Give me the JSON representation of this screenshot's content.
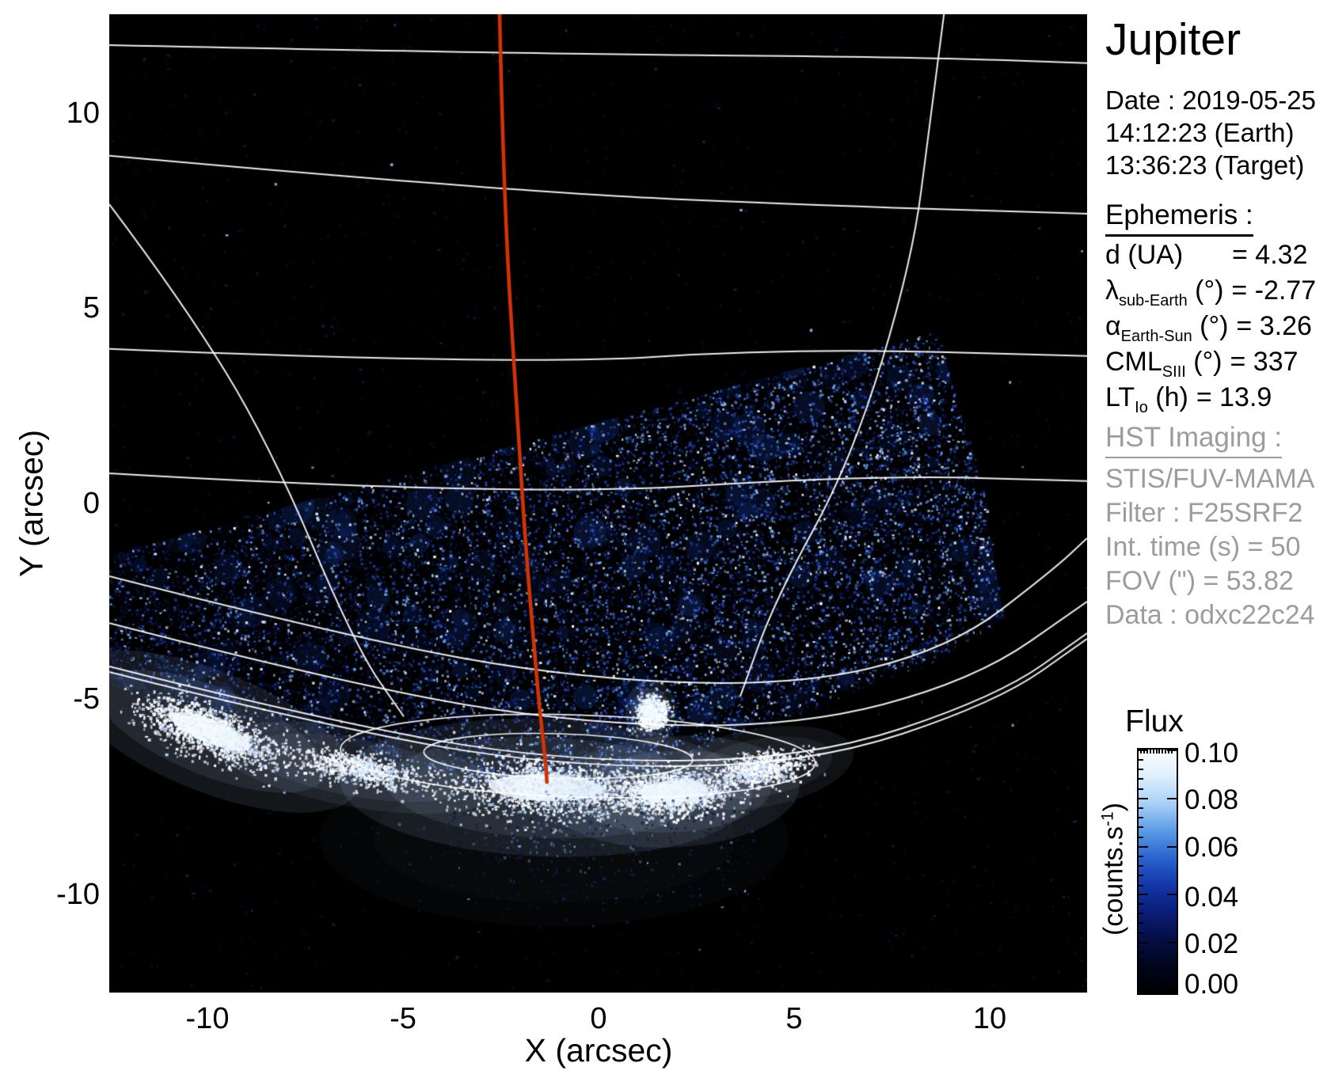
{
  "header": {
    "title": "Jupiter",
    "date_lines": [
      "Date : 2019-05-25",
      "14:12:23 (Earth)",
      "13:36:23 (Target)"
    ]
  },
  "ephemeris": {
    "heading": "Ephemeris :",
    "rows": [
      {
        "sym": "d",
        "sub": "",
        "unit": " (UA)",
        "value": "= 4.32"
      },
      {
        "sym": "λ",
        "sub": "sub-Earth",
        "unit": " (°)",
        "value": "= -2.77"
      },
      {
        "sym": "α",
        "sub": "Earth-Sun",
        "unit": " (°)",
        "value": "= 3.26"
      },
      {
        "sym": "CML",
        "sub": "SIII",
        "unit": " (°)",
        "value": "= 337"
      },
      {
        "sym": "LT",
        "sub": "Io",
        "unit": " (h)",
        "value": "= 13.9"
      }
    ]
  },
  "hst": {
    "heading": "HST Imaging :",
    "lines": [
      "STIS/FUV-MAMA",
      "Filter : F25SRF2",
      "Int. time (s) = 50",
      "FOV (\") = 53.82",
      "Data : odxc22c24"
    ]
  },
  "axes": {
    "x_label": "X (arcsec)",
    "y_label": "Y (arcsec)",
    "x_ticks": [
      "-10",
      "-5",
      "0",
      "5",
      "10"
    ],
    "y_ticks": [
      "10",
      "5",
      "0",
      "-5",
      "-10"
    ]
  },
  "colorbar": {
    "title": "Flux",
    "unit_pre": "(counts.s",
    "unit_sup": "-1",
    "unit_post": ")",
    "tick_labels": [
      "0.10",
      "0.08",
      "0.06",
      "0.04",
      "0.02",
      "0.00"
    ],
    "gradient": [
      "#ffffff",
      "#dceefb",
      "#a8d0f5",
      "#5b9be6",
      "#2a63cf",
      "#1436a8",
      "#0a1d78",
      "#040e44",
      "#01051d",
      "#000000"
    ]
  },
  "chart_data": {
    "type": "heatmap",
    "title": "Jupiter",
    "xlabel": "X (arcsec)",
    "ylabel": "Y (arcsec)",
    "xlim": [
      -12.5,
      12.5
    ],
    "ylim": [
      -12.5,
      12.5
    ],
    "x_ticks": [
      -10,
      -5,
      0,
      5,
      10
    ],
    "y_ticks": [
      10,
      5,
      0,
      -5,
      -10
    ],
    "background_color": "#000000",
    "grid_color": "#ffffff",
    "meridian_color": "#d23304",
    "colorbar": {
      "label": "Flux",
      "unit": "counts.s-1",
      "min": 0.0,
      "max": 0.1,
      "ticks": [
        0.1,
        0.08,
        0.06,
        0.04,
        0.02,
        0.0
      ]
    },
    "exposure_fov_polygon": [
      [
        -12.51,
        -1.3
      ],
      [
        8.64,
        4.41
      ],
      [
        9.8,
        0.53
      ],
      [
        10.36,
        -2.91
      ],
      [
        8.58,
        -4.03
      ],
      [
        4.94,
        -5.45
      ],
      [
        1.9,
        -6.52
      ],
      [
        -1.13,
        -7.53
      ],
      [
        -4.17,
        -6.92
      ],
      [
        -7.21,
        -6.11
      ],
      [
        -10.24,
        -5.38
      ],
      [
        -11.76,
        -4.94
      ],
      [
        -12.51,
        -4.64
      ]
    ],
    "grid_curves": [
      {
        "name": "latitude-1",
        "double": false,
        "points": [
          [
            -12.51,
            11.72
          ],
          [
            -2.15,
            11.5
          ],
          [
            7.98,
            11.42
          ],
          [
            12.49,
            11.26
          ]
        ]
      },
      {
        "name": "latitude-2",
        "double": false,
        "points": [
          [
            -12.51,
            8.89
          ],
          [
            -2.15,
            7.96
          ],
          [
            5.95,
            7.61
          ],
          [
            12.49,
            7.41
          ]
        ]
      },
      {
        "name": "latitude-3",
        "double": false,
        "points": [
          [
            -12.51,
            3.95
          ],
          [
            -2.15,
            3.52
          ],
          [
            4.94,
            3.97
          ],
          [
            12.49,
            3.77
          ]
        ]
      },
      {
        "name": "latitude-4",
        "double": false,
        "points": [
          [
            -12.51,
            0.77
          ],
          [
            -2.15,
            0.16
          ],
          [
            6.96,
            0.73
          ],
          [
            12.49,
            0.57
          ]
        ]
      },
      {
        "name": "latitude-5",
        "double": false,
        "points": [
          [
            -12.51,
            -1.86
          ],
          [
            -7.21,
            -3.22
          ],
          [
            -1.13,
            -4.43
          ],
          [
            4.94,
            -4.7
          ],
          [
            8.99,
            -3.72
          ],
          [
            11.62,
            -1.7
          ],
          [
            12.49,
            -0.89
          ]
        ]
      },
      {
        "name": "latitude-6",
        "double": false,
        "points": [
          [
            -12.51,
            -3.06
          ],
          [
            -7.21,
            -4.43
          ],
          [
            -1.13,
            -5.59
          ],
          [
            4.94,
            -5.75
          ],
          [
            9.6,
            -4.53
          ],
          [
            12.49,
            -2.51
          ]
        ]
      },
      {
        "name": "limb",
        "double": true,
        "points": [
          [
            -12.51,
            -4.17
          ],
          [
            -7.21,
            -5.51
          ],
          [
            -1.13,
            -6.6
          ],
          [
            5.34,
            -6.56
          ],
          [
            10.2,
            -4.94
          ],
          [
            12.49,
            -3.32
          ]
        ]
      },
      {
        "name": "meridian-west",
        "double": false,
        "points": [
          [
            -12.51,
            7.65
          ],
          [
            -10.65,
            5.18
          ],
          [
            -8.42,
            1.54
          ],
          [
            -6.21,
            -3.68
          ],
          [
            -4.98,
            -5.45
          ]
        ]
      },
      {
        "name": "meridian-east",
        "double": false,
        "points": [
          [
            8.83,
            12.51
          ],
          [
            8.48,
            9.84
          ],
          [
            8.02,
            6.19
          ],
          [
            6.48,
            1.13
          ],
          [
            4.51,
            -2.47
          ],
          [
            3.62,
            -4.94
          ]
        ]
      }
    ],
    "grid_ellipses": [
      {
        "cx": -0.53,
        "cy": -6.46,
        "rx": 6.07,
        "ry": 1.05
      },
      {
        "cx": -1.03,
        "cy": -6.46,
        "rx": 3.44,
        "ry": 0.57
      }
    ],
    "red_meridian": [
      [
        -2.53,
        12.51
      ],
      [
        -2.47,
        9.84
      ],
      [
        -2.33,
        6.19
      ],
      [
        -2.11,
        2.75
      ],
      [
        -1.88,
        -0.89
      ],
      [
        -1.68,
        -3.32
      ],
      [
        -1.52,
        -5.14
      ],
      [
        -1.36,
        -6.56
      ],
      [
        -1.32,
        -7.13
      ]
    ],
    "aurora_features": [
      {
        "name": "west-limb-arc",
        "x": -9.92,
        "y": -5.83,
        "rx": 2.02,
        "ry": 0.55,
        "rot_screen_deg": 22,
        "intensity": 1.0
      },
      {
        "name": "west-bridge",
        "x": -6.19,
        "y": -6.76,
        "rx": 1.82,
        "ry": 0.36,
        "rot_screen_deg": 10,
        "intensity": 0.5
      },
      {
        "name": "main-oval",
        "x": -1.34,
        "y": -7.27,
        "rx": 2.63,
        "ry": 0.63,
        "rot_screen_deg": 2,
        "intensity": 1.0
      },
      {
        "name": "east-lobe",
        "x": 1.9,
        "y": -7.37,
        "rx": 1.62,
        "ry": 0.51,
        "rot_screen_deg": -3,
        "intensity": 0.95
      },
      {
        "name": "east-fade",
        "x": 4.13,
        "y": -6.76,
        "rx": 1.21,
        "ry": 0.36,
        "rot_screen_deg": -10,
        "intensity": 0.5
      },
      {
        "name": "bright-spot",
        "x": 1.34,
        "y": -5.34,
        "rx": 0.33,
        "ry": 0.3,
        "rot_screen_deg": 0,
        "intensity": 1.0
      },
      {
        "name": "under-glow",
        "x": -1.13,
        "y": -8.58,
        "rx": 3.0,
        "ry": 0.8,
        "rot_screen_deg": 0,
        "intensity": 0.15
      }
    ],
    "noise": {
      "seed": 20190525,
      "fov_speckle_count": 26000,
      "background_speckle_count": 1700,
      "palette_dark": [
        "#071030",
        "#0a1747",
        "#061038"
      ],
      "palette_mid": [
        "#1c3fae",
        "#2451c8",
        "#16399b"
      ],
      "palette_bright": [
        "#5d95e8",
        "#7fb2f0"
      ],
      "palette_white": [
        "#ffffff",
        "#e8f3ff",
        "#cfe4ff"
      ]
    }
  }
}
